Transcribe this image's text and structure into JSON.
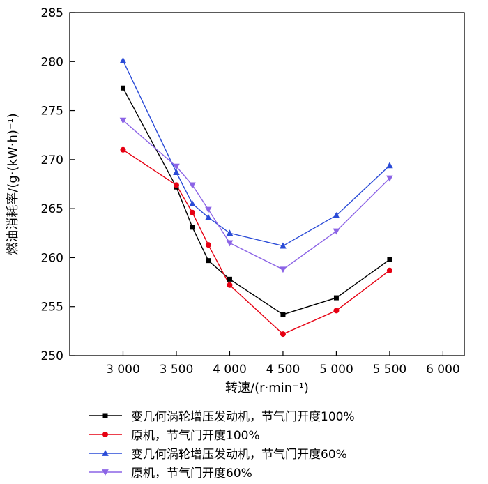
{
  "chart_data": {
    "type": "line",
    "title": "",
    "xlabel": "转速/(r·min⁻¹)",
    "ylabel": "燃油消耗率/(g·(kW·h)⁻¹)",
    "xlim": [
      2500,
      6200
    ],
    "ylim": [
      250,
      285
    ],
    "xticks": [
      3000,
      3500,
      4000,
      4500,
      5000,
      5500,
      6000
    ],
    "xtick_labels": [
      "3 000",
      "3 500",
      "4 000",
      "4 500",
      "5 000",
      "5 500",
      "6 000"
    ],
    "yticks": [
      250,
      255,
      260,
      265,
      270,
      275,
      280,
      285
    ],
    "grid": false,
    "legend_position": "bottom",
    "x": [
      3000,
      3500,
      3650,
      3800,
      4000,
      4500,
      5000,
      5500
    ],
    "series": [
      {
        "name": "变几何涡轮增压发动机，节气门开度100%",
        "color": "#000000",
        "marker": "square",
        "values": [
          277.3,
          267.2,
          263.1,
          259.7,
          257.8,
          254.2,
          255.9,
          259.8
        ]
      },
      {
        "name": "原机，节气门开度100%",
        "color": "#e60012",
        "marker": "circle",
        "values": [
          271.0,
          267.4,
          264.6,
          261.3,
          257.2,
          252.2,
          254.6,
          258.7
        ]
      },
      {
        "name": "变几何涡轮增压发动机，节气门开度60%",
        "color": "#2a4bd7",
        "marker": "triangle-up",
        "values": [
          280.1,
          268.7,
          265.5,
          264.1,
          262.5,
          261.2,
          264.3,
          269.4
        ]
      },
      {
        "name": "原机，节气门开度60%",
        "color": "#8c64e6",
        "marker": "triangle-down",
        "values": [
          274.0,
          269.3,
          267.4,
          264.9,
          261.5,
          258.8,
          262.7,
          268.1
        ]
      }
    ]
  }
}
